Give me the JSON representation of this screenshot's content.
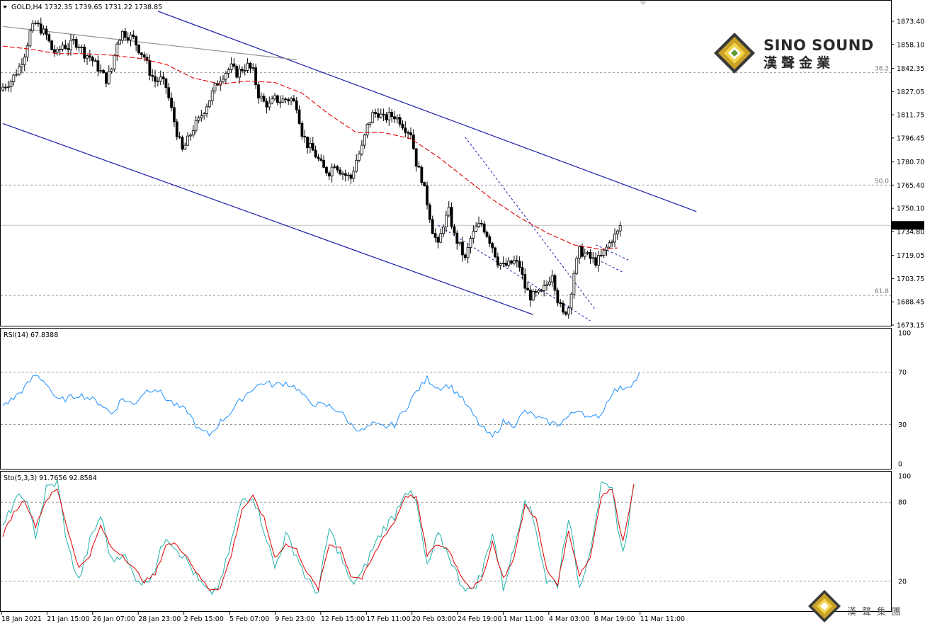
{
  "header": {
    "symbol_label": "GOLD,H4",
    "ohlc": "1732.35 1739.65 1731.22 1738.85"
  },
  "watermark": {
    "brand_en": "SINO SOUND",
    "brand_cn": "漢聲金業",
    "brand_cn_bottom": "漢聲集團"
  },
  "colors": {
    "candle": "#000000",
    "ma": "#e00000",
    "channel": "#1a1aa8",
    "trend_gray": "#909090",
    "rsi_line": "#1e90ff",
    "sto_main": "#20b2aa",
    "sto_signal": "#e00000",
    "level_dash": "#9a9a9a"
  },
  "chart_data": [
    {
      "type": "candlestick",
      "name": "GOLD,H4",
      "y_ticks": [
        "1873.40",
        "1858.10",
        "1842.35",
        "1827.05",
        "1811.75",
        "1796.45",
        "1780.70",
        "1765.40",
        "1750.10",
        "1734.80",
        "1719.05",
        "1703.75",
        "1688.45",
        "1673.15"
      ],
      "ylim": [
        1673.15,
        1873.4
      ],
      "last_price": "1738.85",
      "fib_levels": [
        {
          "label": "38.2",
          "value": 1839.6
        },
        {
          "label": "50.0",
          "value": 1765.4
        },
        {
          "label": "61.8",
          "value": 1692.7
        }
      ],
      "x_ticks": [
        "18 Jan 2021",
        "21 Jan 15:00",
        "26 Jan 07:00",
        "28 Jan 23:00",
        "2 Feb 15:00",
        "5 Feb 07:00",
        "9 Feb 23:00",
        "12 Feb 15:00",
        "17 Feb 11:00",
        "20 Feb 03:00",
        "24 Feb 19:00",
        "1 Mar 11:00",
        "4 Mar 03:00",
        "8 Mar 19:00",
        "11 Mar 11:00"
      ],
      "close_path": [
        [
          0,
          1830
        ],
        [
          3,
          1834
        ],
        [
          6,
          1843
        ],
        [
          8,
          1852
        ],
        [
          10,
          1866
        ],
        [
          12,
          1872
        ],
        [
          14,
          1868
        ],
        [
          16,
          1864
        ],
        [
          18,
          1855
        ],
        [
          20,
          1852
        ],
        [
          22,
          1858
        ],
        [
          24,
          1856
        ],
        [
          26,
          1860
        ],
        [
          28,
          1858
        ],
        [
          30,
          1852
        ],
        [
          32,
          1850
        ],
        [
          34,
          1845
        ],
        [
          36,
          1840
        ],
        [
          38,
          1835
        ],
        [
          40,
          1842
        ],
        [
          42,
          1860
        ],
        [
          44,
          1866
        ],
        [
          46,
          1864
        ],
        [
          48,
          1862
        ],
        [
          50,
          1855
        ],
        [
          52,
          1850
        ],
        [
          54,
          1840
        ],
        [
          56,
          1834
        ],
        [
          58,
          1835
        ],
        [
          60,
          1830
        ],
        [
          62,
          1815
        ],
        [
          64,
          1800
        ],
        [
          66,
          1788
        ],
        [
          68,
          1795
        ],
        [
          70,
          1803
        ],
        [
          72,
          1808
        ],
        [
          74,
          1815
        ],
        [
          76,
          1822
        ],
        [
          78,
          1830
        ],
        [
          80,
          1836
        ],
        [
          82,
          1840
        ],
        [
          84,
          1843
        ],
        [
          86,
          1839
        ],
        [
          88,
          1842
        ],
        [
          90,
          1844
        ],
        [
          92,
          1840
        ],
        [
          94,
          1825
        ],
        [
          96,
          1820
        ],
        [
          98,
          1818
        ],
        [
          100,
          1822
        ],
        [
          102,
          1821
        ],
        [
          104,
          1822
        ],
        [
          106,
          1822
        ],
        [
          108,
          1818
        ],
        [
          110,
          1800
        ],
        [
          112,
          1792
        ],
        [
          114,
          1788
        ],
        [
          116,
          1782
        ],
        [
          118,
          1776
        ],
        [
          120,
          1774
        ],
        [
          122,
          1780
        ],
        [
          124,
          1775
        ],
        [
          126,
          1772
        ],
        [
          128,
          1770
        ],
        [
          130,
          1782
        ],
        [
          132,
          1790
        ],
        [
          134,
          1804
        ],
        [
          136,
          1812
        ],
        [
          138,
          1813
        ],
        [
          140,
          1809
        ],
        [
          142,
          1811
        ],
        [
          144,
          1811
        ],
        [
          146,
          1808
        ],
        [
          148,
          1803
        ],
        [
          150,
          1800
        ],
        [
          152,
          1780
        ],
        [
          154,
          1770
        ],
        [
          156,
          1754
        ],
        [
          158,
          1736
        ],
        [
          160,
          1725
        ],
        [
          162,
          1740
        ],
        [
          164,
          1748
        ],
        [
          166,
          1732
        ],
        [
          168,
          1725
        ],
        [
          170,
          1716
        ],
        [
          172,
          1730
        ],
        [
          174,
          1737
        ],
        [
          176,
          1740
        ],
        [
          178,
          1733
        ],
        [
          180,
          1725
        ],
        [
          182,
          1715
        ],
        [
          184,
          1712
        ],
        [
          186,
          1713
        ],
        [
          188,
          1715
        ],
        [
          190,
          1712
        ],
        [
          192,
          1698
        ],
        [
          194,
          1692
        ],
        [
          196,
          1693
        ],
        [
          198,
          1694
        ],
        [
          200,
          1700
        ],
        [
          202,
          1708
        ],
        [
          204,
          1690
        ],
        [
          206,
          1680
        ],
        [
          208,
          1685
        ],
        [
          210,
          1708
        ],
        [
          212,
          1722
        ],
        [
          214,
          1720
        ],
        [
          216,
          1717
        ],
        [
          218,
          1715
        ],
        [
          220,
          1718
        ],
        [
          222,
          1724
        ],
        [
          224,
          1730
        ],
        [
          226,
          1734
        ],
        [
          227,
          1738.85
        ]
      ],
      "ma_path": [
        [
          0,
          1857
        ],
        [
          10,
          1855
        ],
        [
          20,
          1852
        ],
        [
          30,
          1852
        ],
        [
          40,
          1851
        ],
        [
          50,
          1849
        ],
        [
          60,
          1845
        ],
        [
          70,
          1836
        ],
        [
          80,
          1832
        ],
        [
          90,
          1834
        ],
        [
          100,
          1833
        ],
        [
          110,
          1826
        ],
        [
          120,
          1812
        ],
        [
          130,
          1800
        ],
        [
          140,
          1800
        ],
        [
          150,
          1796
        ],
        [
          160,
          1784
        ],
        [
          170,
          1770
        ],
        [
          180,
          1756
        ],
        [
          190,
          1744
        ],
        [
          200,
          1734
        ],
        [
          210,
          1726
        ],
        [
          220,
          1723
        ],
        [
          226,
          1724
        ]
      ],
      "lines": [
        {
          "name": "channel-upper",
          "style": "solid",
          "points": [
            [
              57,
              1880
            ],
            [
              255,
              1748
            ]
          ]
        },
        {
          "name": "channel-lower",
          "style": "solid",
          "points": [
            [
              0,
              1806
            ],
            [
              195,
              1680
            ]
          ]
        },
        {
          "name": "trend-gray",
          "style": "solid",
          "points": [
            [
              0,
              1870
            ],
            [
              108,
              1848
            ]
          ]
        },
        {
          "name": "wedge-upper",
          "style": "dashed",
          "points": [
            [
              170,
              1797
            ],
            [
              218,
              1683
            ]
          ]
        },
        {
          "name": "wedge-lower",
          "style": "dashed",
          "points": [
            [
              160,
              1739
            ],
            [
              216,
              1676
            ]
          ]
        },
        {
          "name": "flag-upper",
          "style": "dashed",
          "points": [
            [
              218,
              1726
            ],
            [
              230,
              1716
            ]
          ]
        },
        {
          "name": "flag-lower",
          "style": "dashed",
          "points": [
            [
              220,
              1715
            ],
            [
              228,
              1708
            ]
          ]
        }
      ]
    },
    {
      "type": "line",
      "name": "RSI(14)",
      "label": "RSI(14) 67.8388",
      "y_ticks": [
        "100",
        "70",
        "30",
        "0"
      ],
      "ylim": [
        0,
        100
      ],
      "levels": [
        70,
        30
      ],
      "path": [
        [
          0,
          45
        ],
        [
          4,
          50
        ],
        [
          8,
          58
        ],
        [
          12,
          68
        ],
        [
          16,
          62
        ],
        [
          20,
          48
        ],
        [
          24,
          50
        ],
        [
          28,
          53
        ],
        [
          32,
          50
        ],
        [
          36,
          46
        ],
        [
          40,
          38
        ],
        [
          44,
          50
        ],
        [
          48,
          45
        ],
        [
          52,
          55
        ],
        [
          56,
          58
        ],
        [
          60,
          50
        ],
        [
          64,
          44
        ],
        [
          68,
          40
        ],
        [
          72,
          26
        ],
        [
          76,
          22
        ],
        [
          80,
          32
        ],
        [
          84,
          40
        ],
        [
          88,
          50
        ],
        [
          92,
          58
        ],
        [
          96,
          62
        ],
        [
          100,
          60
        ],
        [
          104,
          62
        ],
        [
          108,
          58
        ],
        [
          112,
          48
        ],
        [
          116,
          45
        ],
        [
          120,
          44
        ],
        [
          124,
          40
        ],
        [
          128,
          30
        ],
        [
          132,
          25
        ],
        [
          136,
          30
        ],
        [
          140,
          28
        ],
        [
          144,
          30
        ],
        [
          148,
          42
        ],
        [
          152,
          55
        ],
        [
          156,
          65
        ],
        [
          160,
          58
        ],
        [
          164,
          60
        ],
        [
          168,
          52
        ],
        [
          172,
          40
        ],
        [
          176,
          28
        ],
        [
          180,
          20
        ],
        [
          184,
          32
        ],
        [
          188,
          30
        ],
        [
          192,
          40
        ],
        [
          196,
          36
        ],
        [
          200,
          32
        ],
        [
          204,
          30
        ],
        [
          208,
          36
        ],
        [
          212,
          42
        ],
        [
          216,
          34
        ],
        [
          220,
          38
        ],
        [
          224,
          55
        ],
        [
          228,
          58
        ],
        [
          232,
          62
        ],
        [
          234,
          67.8
        ]
      ]
    },
    {
      "type": "line",
      "name": "Sto(5,3,3)",
      "label": "Sto(5,3,3) 91.7656 92.8584",
      "y_ticks": [
        "100",
        "80",
        "20"
      ],
      "ylim": [
        0,
        100
      ],
      "levels": [
        80,
        20
      ],
      "main_path": [
        [
          0,
          60
        ],
        [
          4,
          80
        ],
        [
          8,
          85
        ],
        [
          12,
          55
        ],
        [
          16,
          90
        ],
        [
          20,
          95
        ],
        [
          24,
          45
        ],
        [
          28,
          20
        ],
        [
          32,
          50
        ],
        [
          36,
          70
        ],
        [
          40,
          35
        ],
        [
          44,
          42
        ],
        [
          48,
          25
        ],
        [
          52,
          18
        ],
        [
          56,
          30
        ],
        [
          60,
          55
        ],
        [
          64,
          45
        ],
        [
          68,
          35
        ],
        [
          72,
          20
        ],
        [
          76,
          10
        ],
        [
          80,
          18
        ],
        [
          84,
          50
        ],
        [
          88,
          82
        ],
        [
          92,
          85
        ],
        [
          96,
          60
        ],
        [
          100,
          30
        ],
        [
          104,
          55
        ],
        [
          108,
          40
        ],
        [
          112,
          20
        ],
        [
          116,
          12
        ],
        [
          120,
          60
        ],
        [
          124,
          40
        ],
        [
          128,
          18
        ],
        [
          132,
          25
        ],
        [
          136,
          45
        ],
        [
          140,
          60
        ],
        [
          144,
          70
        ],
        [
          148,
          90
        ],
        [
          152,
          80
        ],
        [
          156,
          30
        ],
        [
          160,
          55
        ],
        [
          164,
          40
        ],
        [
          168,
          20
        ],
        [
          172,
          12
        ],
        [
          176,
          25
        ],
        [
          180,
          58
        ],
        [
          184,
          15
        ],
        [
          188,
          45
        ],
        [
          192,
          85
        ],
        [
          196,
          60
        ],
        [
          200,
          20
        ],
        [
          204,
          18
        ],
        [
          208,
          70
        ],
        [
          212,
          15
        ],
        [
          216,
          45
        ],
        [
          220,
          92
        ],
        [
          224,
          88
        ],
        [
          228,
          40
        ],
        [
          232,
          92
        ]
      ],
      "signal_path": [
        [
          0,
          55
        ],
        [
          4,
          72
        ],
        [
          8,
          82
        ],
        [
          12,
          62
        ],
        [
          16,
          82
        ],
        [
          20,
          90
        ],
        [
          24,
          58
        ],
        [
          28,
          30
        ],
        [
          32,
          40
        ],
        [
          36,
          62
        ],
        [
          40,
          45
        ],
        [
          44,
          40
        ],
        [
          48,
          30
        ],
        [
          52,
          20
        ],
        [
          56,
          25
        ],
        [
          60,
          48
        ],
        [
          64,
          48
        ],
        [
          68,
          38
        ],
        [
          72,
          24
        ],
        [
          76,
          14
        ],
        [
          80,
          15
        ],
        [
          84,
          40
        ],
        [
          88,
          75
        ],
        [
          92,
          84
        ],
        [
          96,
          68
        ],
        [
          100,
          38
        ],
        [
          104,
          48
        ],
        [
          108,
          44
        ],
        [
          112,
          26
        ],
        [
          116,
          14
        ],
        [
          120,
          48
        ],
        [
          124,
          46
        ],
        [
          128,
          24
        ],
        [
          132,
          22
        ],
        [
          136,
          38
        ],
        [
          140,
          54
        ],
        [
          144,
          65
        ],
        [
          148,
          85
        ],
        [
          152,
          84
        ],
        [
          156,
          40
        ],
        [
          160,
          48
        ],
        [
          164,
          44
        ],
        [
          168,
          26
        ],
        [
          172,
          15
        ],
        [
          176,
          20
        ],
        [
          180,
          50
        ],
        [
          184,
          22
        ],
        [
          188,
          38
        ],
        [
          192,
          78
        ],
        [
          196,
          68
        ],
        [
          200,
          28
        ],
        [
          204,
          18
        ],
        [
          208,
          58
        ],
        [
          212,
          25
        ],
        [
          216,
          38
        ],
        [
          220,
          85
        ],
        [
          224,
          90
        ],
        [
          228,
          50
        ],
        [
          232,
          93
        ]
      ]
    }
  ]
}
